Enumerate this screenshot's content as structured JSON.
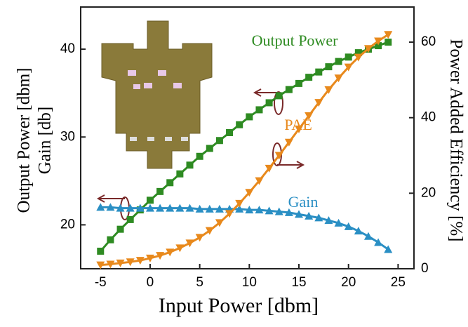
{
  "chart_data": {
    "type": "line",
    "xlabel": "Input Power [dbm]",
    "ylabel": [
      "Output Power [dbm]",
      "Gain [db]"
    ],
    "y2label": "Power Added Efficiency [%]",
    "x": [
      -5,
      -4,
      -3,
      -2,
      -1,
      0,
      1,
      2,
      3,
      4,
      5,
      6,
      7,
      8,
      9,
      10,
      11,
      12,
      13,
      14,
      15,
      16,
      17,
      18,
      19,
      20,
      21,
      22,
      23,
      24
    ],
    "xlim": [
      -7,
      26.6
    ],
    "xticks": [
      -5,
      0,
      5,
      10,
      15,
      20,
      25
    ],
    "ylim": [
      15,
      44.8
    ],
    "yticks": [
      20,
      30,
      40
    ],
    "y2lim": [
      0,
      69.3
    ],
    "y2ticks": [
      0,
      20,
      40,
      60
    ],
    "series": [
      {
        "name": "Output Power",
        "color": "#2e8b22",
        "marker": "square",
        "values": [
          17.0,
          18.3,
          19.5,
          20.6,
          21.7,
          22.8,
          23.8,
          24.8,
          25.8,
          26.8,
          27.8,
          28.7,
          29.6,
          30.5,
          31.4,
          32.3,
          33.1,
          33.9,
          34.7,
          35.4,
          36.1,
          36.8,
          37.4,
          38.0,
          38.6,
          39.1,
          39.6,
          40.0,
          40.4,
          40.8
        ]
      },
      {
        "name": "Gain",
        "color": "#2a8fc4",
        "marker": "triangle-up",
        "values": [
          22.0,
          22.0,
          21.9,
          21.9,
          21.9,
          21.9,
          21.9,
          21.9,
          21.9,
          21.9,
          21.8,
          21.8,
          21.8,
          21.8,
          21.8,
          21.7,
          21.7,
          21.6,
          21.5,
          21.4,
          21.2,
          21.0,
          20.8,
          20.5,
          20.2,
          19.8,
          19.3,
          18.7,
          18.0,
          17.2
        ]
      },
      {
        "name": "PAE",
        "color": "#e8891c",
        "marker": "triangle-down",
        "axis": "y2",
        "values": [
          1,
          1.2,
          1.5,
          1.8,
          2.2,
          2.8,
          3.5,
          4.4,
          5.5,
          6.8,
          8.3,
          10.1,
          12.2,
          14.6,
          17.3,
          20.2,
          23.3,
          26.6,
          30.0,
          33.5,
          37.0,
          40.5,
          44.0,
          47.4,
          50.5,
          53.4,
          56.0,
          58.3,
          60.3,
          62.0
        ]
      }
    ]
  }
}
